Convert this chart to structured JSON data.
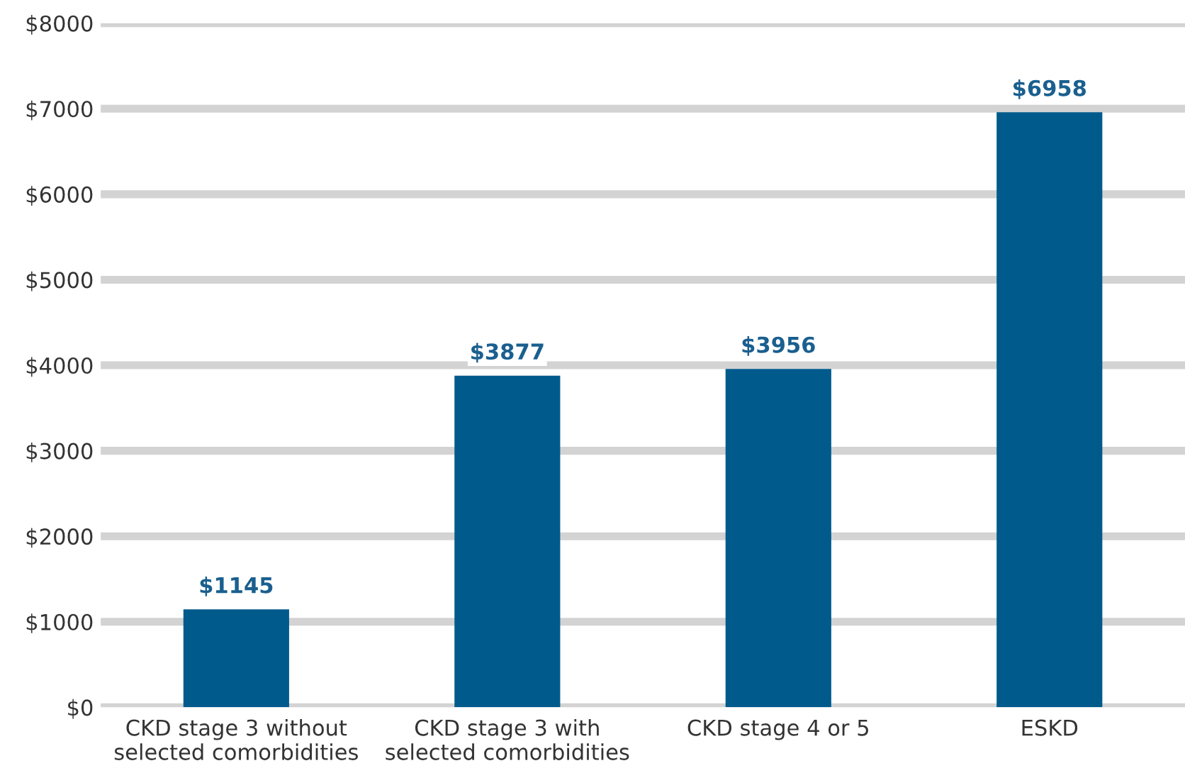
{
  "chart_data": {
    "type": "bar",
    "categories": [
      "CKD stage 3 without\nselected comorbidities",
      "CKD stage 3 with\nselected comorbidities",
      "CKD stage 4 or 5",
      "ESKD"
    ],
    "values": [
      1145,
      3877,
      3956,
      6958
    ],
    "value_labels": [
      "$1145",
      "$3877",
      "$3956",
      "$6958"
    ],
    "color": "#005a8c",
    "ylim": [
      0,
      8000
    ],
    "yticks": [
      {
        "value": 0,
        "label": "$0"
      },
      {
        "value": 1000,
        "label": "$1000"
      },
      {
        "value": 2000,
        "label": "$2000"
      },
      {
        "value": 3000,
        "label": "$3000"
      },
      {
        "value": 4000,
        "label": "$4000"
      },
      {
        "value": 5000,
        "label": "$5000"
      },
      {
        "value": 6000,
        "label": "$6000"
      },
      {
        "value": 7000,
        "label": "$7000"
      },
      {
        "value": 8000,
        "label": "$8000"
      }
    ],
    "grid": "y"
  }
}
